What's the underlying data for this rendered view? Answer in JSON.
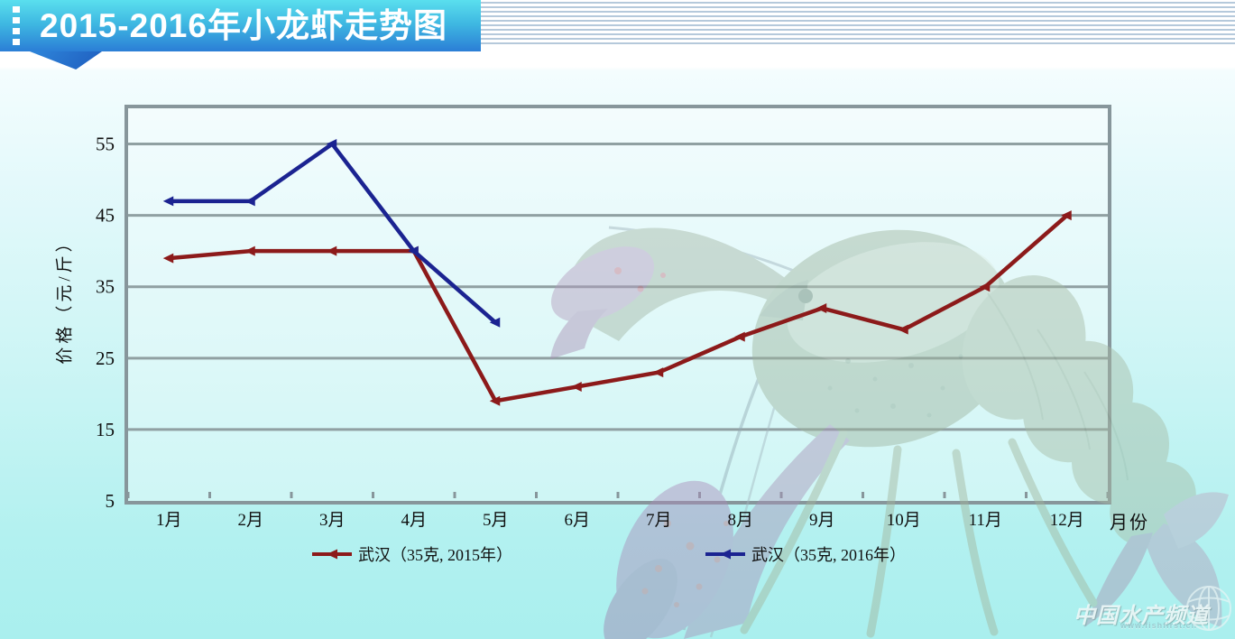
{
  "banner": {
    "title": "2015-2016年小龙虾走势图"
  },
  "chart_data": {
    "type": "line",
    "title": "2015-2016年小龙虾走势图",
    "categories": [
      "1月",
      "2月",
      "3月",
      "4月",
      "5月",
      "6月",
      "7月",
      "8月",
      "9月",
      "10月",
      "11月",
      "12月"
    ],
    "xlabel": "月份",
    "ylabel": "价格（元/斤）",
    "ylim": [
      5,
      60
    ],
    "yticks": [
      5,
      15,
      25,
      35,
      45,
      55
    ],
    "grid": true,
    "legend_position": "bottom",
    "series": [
      {
        "name": "武汉（35克, 2015年）",
        "color": "#8c1a1a",
        "values": [
          39,
          40,
          40,
          40,
          19,
          21,
          23,
          28,
          32,
          29,
          35,
          45
        ]
      },
      {
        "name": "武汉（35克, 2016年）",
        "color": "#1b2391",
        "values": [
          47,
          47,
          55,
          40,
          30,
          null,
          null,
          null,
          null,
          null,
          null,
          null
        ]
      }
    ]
  },
  "watermark": {
    "brand": "中国水产频道",
    "url": "www.fishfirst.cn"
  },
  "colors": {
    "banner_top": "#5adfee",
    "banner_bottom": "#2b7ed6",
    "grid": "#90a0a2",
    "axis_border": "#87969b",
    "background_top": "#f4fdfe",
    "background_bottom": "#a9efee"
  }
}
